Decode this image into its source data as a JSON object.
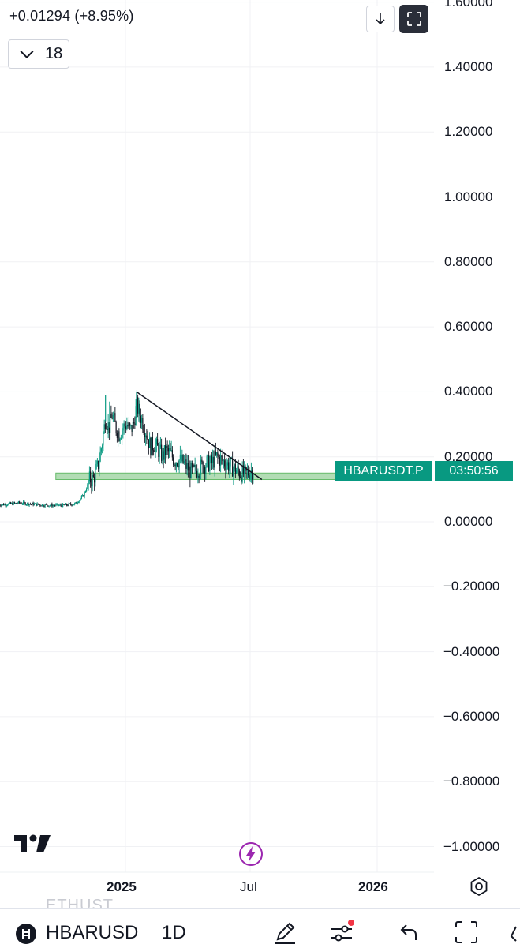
{
  "header": {
    "change": "+0.01294 (+8.95%)",
    "interval_value": "18"
  },
  "chart_data": {
    "type": "candlestick",
    "symbol": "HBARUSDT.P",
    "timeframe": "1D",
    "ylim": [
      -1.0,
      1.6
    ],
    "y_ticks": [
      "1.60000",
      "1.40000",
      "1.20000",
      "1.00000",
      "0.80000",
      "0.60000",
      "0.40000",
      "0.20000",
      "0.00000",
      "−0.20000",
      "−0.40000",
      "−0.60000",
      "−0.80000",
      "−1.00000"
    ],
    "x_ticks": [
      "2025",
      "Jul",
      "2026"
    ],
    "price_series": [
      [
        "2024-07-01",
        0.052
      ],
      [
        "2024-08-01",
        0.058
      ],
      [
        "2024-09-01",
        0.052
      ],
      [
        "2024-10-01",
        0.05
      ],
      [
        "2024-10-20",
        0.055
      ],
      [
        "2024-11-01",
        0.08
      ],
      [
        "2024-11-10",
        0.13
      ],
      [
        "2024-11-15",
        0.13
      ],
      [
        "2024-11-22",
        0.17
      ],
      [
        "2024-11-28",
        0.24
      ],
      [
        "2024-12-03",
        0.32
      ],
      [
        "2024-12-08",
        0.29
      ],
      [
        "2024-12-13",
        0.33
      ],
      [
        "2024-12-18",
        0.29
      ],
      [
        "2024-12-23",
        0.27
      ],
      [
        "2024-12-28",
        0.29
      ],
      [
        "2025-01-03",
        0.3
      ],
      [
        "2025-01-08",
        0.28
      ],
      [
        "2025-01-13",
        0.3
      ],
      [
        "2025-01-17",
        0.36
      ],
      [
        "2025-01-22",
        0.33
      ],
      [
        "2025-01-27",
        0.3
      ],
      [
        "2025-02-01",
        0.27
      ],
      [
        "2025-02-06",
        0.23
      ],
      [
        "2025-02-12",
        0.24
      ],
      [
        "2025-02-18",
        0.22
      ],
      [
        "2025-02-24",
        0.2
      ],
      [
        "2025-03-01",
        0.22
      ],
      [
        "2025-03-07",
        0.21
      ],
      [
        "2025-03-13",
        0.19
      ],
      [
        "2025-03-20",
        0.19
      ],
      [
        "2025-03-27",
        0.18
      ],
      [
        "2025-04-03",
        0.16
      ],
      [
        "2025-04-08",
        0.15
      ],
      [
        "2025-04-15",
        0.16
      ],
      [
        "2025-04-22",
        0.17
      ],
      [
        "2025-04-29",
        0.18
      ],
      [
        "2025-05-06",
        0.18
      ],
      [
        "2025-05-13",
        0.2
      ],
      [
        "2025-05-20",
        0.19
      ],
      [
        "2025-05-27",
        0.18
      ],
      [
        "2025-06-03",
        0.17
      ],
      [
        "2025-06-10",
        0.16
      ],
      [
        "2025-06-17",
        0.15
      ],
      [
        "2025-06-24",
        0.145
      ],
      [
        "2025-07-01",
        0.155
      ],
      [
        "2025-07-06",
        0.16
      ]
    ],
    "support_zone": {
      "from": "2024-11-01",
      "to": "2025-12-15",
      "low": 0.13,
      "high": 0.15,
      "color": "#a5d6a7"
    },
    "trendline": {
      "from": [
        "2025-01-17",
        0.4
      ],
      "to": [
        "2025-07-18",
        0.13
      ]
    },
    "last_price_label": "0.15800",
    "price_tag": "HBARUSDT.P",
    "countdown": "03:50:56",
    "colors": {
      "up": "#089981",
      "down": "#131722",
      "tag": "#089981",
      "zone": "#a5d6a7",
      "grid": "#f0f1f4"
    }
  },
  "watermark": "ETHUST",
  "bottom_bar": {
    "symbol": "HBARUSD",
    "timeframe": "1D",
    "icons": [
      "coin-icon",
      "drawing-pen-icon",
      "indicators-settings-icon",
      "undo-icon",
      "fullscreen-icon"
    ]
  }
}
